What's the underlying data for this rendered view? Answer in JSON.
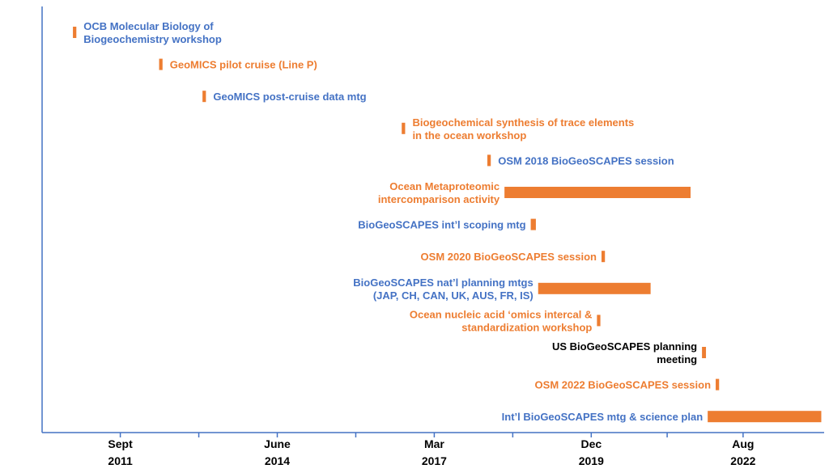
{
  "chart_data": {
    "type": "timeline",
    "x_axis": {
      "ticks": [
        {
          "month": "Sept",
          "year": "2011",
          "value": 2011.67
        },
        {
          "month": "June",
          "year": "2014",
          "value": 2014.42
        },
        {
          "month": "Mar",
          "year": "2017",
          "value": 2017.17
        },
        {
          "month": "Dec",
          "year": "2019",
          "value": 2019.92
        },
        {
          "month": "Aug",
          "year": "2022",
          "value": 2022.58
        }
      ],
      "range": [
        2010.3,
        2024.0
      ]
    },
    "colors": {
      "blue": "#4472c4",
      "orange": "#ed7d31",
      "black": "#000000",
      "axis": "#4472c4"
    },
    "events": [
      {
        "lines": [
          "OCB Molecular Biology of",
          "Biogeochemistry workshop"
        ],
        "label_color": "blue",
        "label_side": "right",
        "start": 2010.84,
        "end": 2010.9
      },
      {
        "lines": [
          "GeoMICS pilot cruise (Line P)"
        ],
        "label_color": "orange",
        "label_side": "right",
        "start": 2012.35,
        "end": 2012.41
      },
      {
        "lines": [
          "GeoMICS post-cruise data mtg"
        ],
        "label_color": "blue",
        "label_side": "right",
        "start": 2013.11,
        "end": 2013.17
      },
      {
        "lines": [
          "Biogeochemical synthesis of trace elements",
          "in the ocean workshop"
        ],
        "label_color": "orange",
        "label_side": "right",
        "start": 2016.6,
        "end": 2016.66
      },
      {
        "lines": [
          "OSM 2018 BioGeoSCAPES session"
        ],
        "label_color": "blue",
        "label_side": "right",
        "start": 2018.1,
        "end": 2018.16
      },
      {
        "lines": [
          "Ocean Metaproteomic",
          "intercomparison activity"
        ],
        "label_color": "orange",
        "label_side": "left",
        "start": 2018.4,
        "end": 2021.66
      },
      {
        "lines": [
          "BioGeoSCAPES int’l scoping mtg"
        ],
        "label_color": "blue",
        "label_side": "left",
        "start": 2018.86,
        "end": 2018.95
      },
      {
        "lines": [
          "OSM 2020 BioGeoSCAPES session"
        ],
        "label_color": "orange",
        "label_side": "left",
        "start": 2020.1,
        "end": 2020.16
      },
      {
        "lines": [
          "BioGeoSCAPES nat’l planning mtgs",
          "(JAP, CH, CAN, UK, AUS, FR, IS)"
        ],
        "label_color": "blue",
        "label_side": "left",
        "start": 2018.99,
        "end": 2020.96
      },
      {
        "lines": [
          "Ocean nucleic acid ‘omics intercal &",
          "standardization workshop"
        ],
        "label_color": "orange",
        "label_side": "left",
        "start": 2020.02,
        "end": 2020.08
      },
      {
        "lines": [
          "US BioGeoSCAPES planning",
          "meeting"
        ],
        "label_color": "black",
        "label_side": "left",
        "start": 2021.86,
        "end": 2021.93
      },
      {
        "lines": [
          "OSM 2022 BioGeoSCAPES session"
        ],
        "label_color": "orange",
        "label_side": "left",
        "start": 2022.1,
        "end": 2022.16
      },
      {
        "lines": [
          "Int’l BioGeoSCAPES mtg & science plan"
        ],
        "label_color": "blue",
        "label_side": "left",
        "start": 2021.96,
        "end": 2023.95
      }
    ]
  }
}
